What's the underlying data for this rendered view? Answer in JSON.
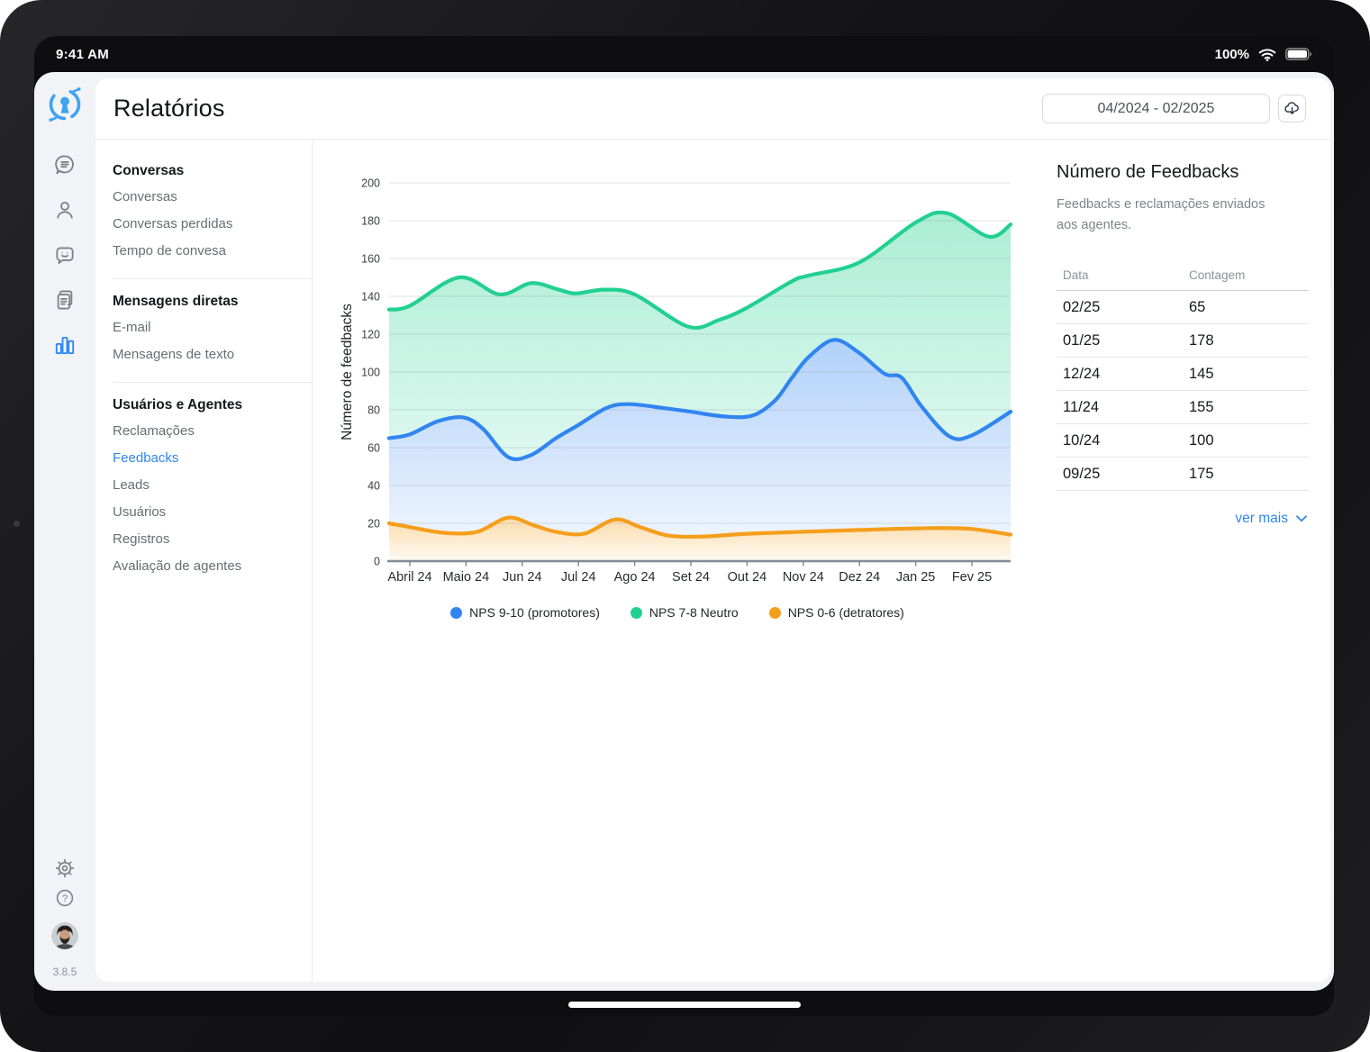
{
  "status_bar": {
    "time": "9:41 AM",
    "battery_percent": "100%"
  },
  "header": {
    "title": "Relatórios",
    "date_range": "04/2024 - 02/2025"
  },
  "colors": {
    "accent": "#2e86f0",
    "chart_blue": "#3185f0",
    "chart_green": "#22d092",
    "chart_orange": "#f59e1b"
  },
  "rail": {
    "icons": [
      "conversations",
      "contacts",
      "feedback",
      "documents",
      "reports"
    ],
    "active_icon": "reports",
    "bottom_icons": [
      "settings",
      "help"
    ],
    "version": "3.8.5"
  },
  "sidebar": {
    "sections": [
      {
        "header": "Conversas",
        "items": [
          {
            "label": "Conversas",
            "active": false
          },
          {
            "label": "Conversas perdidas",
            "active": false
          },
          {
            "label": "Tempo de convesa",
            "active": false
          }
        ]
      },
      {
        "header": "Mensagens diretas",
        "items": [
          {
            "label": "E-mail",
            "active": false
          },
          {
            "label": "Mensagens de texto",
            "active": false
          }
        ]
      },
      {
        "header": "Usuários e Agentes",
        "items": [
          {
            "label": "Reclamações",
            "active": false
          },
          {
            "label": "Feedbacks",
            "active": true
          },
          {
            "label": "Leads",
            "active": false
          },
          {
            "label": "Usuários",
            "active": false
          },
          {
            "label": "Registros",
            "active": false
          },
          {
            "label": "Avaliação de agentes",
            "active": false
          }
        ]
      }
    ]
  },
  "chart_data": {
    "type": "area",
    "title": "",
    "xlabel": "",
    "ylabel": "Número de feedbacks",
    "ylim": [
      0,
      200
    ],
    "ytick_step": 20,
    "grid": true,
    "legend_position": "bottom",
    "categories": [
      "Abril 24",
      "Maio 24",
      "Jun 24",
      "Jul 24",
      "Ago 24",
      "Set 24",
      "Out 24",
      "Nov 24",
      "Dez 24",
      "Jan 25",
      "Fev 25"
    ],
    "series": [
      {
        "name": "NPS 9-10 (promotores)",
        "color": "#3185f0",
        "values": [
          67,
          76,
          56,
          72,
          82,
          79,
          77,
          107,
          110,
          85,
          67
        ],
        "curve": [
          [
            -0.37,
            65
          ],
          [
            0,
            67
          ],
          [
            0.5,
            74
          ],
          [
            0.95,
            76
          ],
          [
            1.3,
            70
          ],
          [
            1.75,
            55
          ],
          [
            2.15,
            56
          ],
          [
            2.6,
            65
          ],
          [
            3,
            72
          ],
          [
            3.5,
            81
          ],
          [
            3.9,
            83
          ],
          [
            4.5,
            81
          ],
          [
            5,
            79
          ],
          [
            5.6,
            76.5
          ],
          [
            6.1,
            77
          ],
          [
            6.5,
            85
          ],
          [
            6.8,
            97
          ],
          [
            7.1,
            108
          ],
          [
            7.55,
            117
          ],
          [
            8,
            110
          ],
          [
            8.45,
            99
          ],
          [
            8.75,
            97
          ],
          [
            9.1,
            82
          ],
          [
            9.6,
            66
          ],
          [
            10,
            66.5
          ],
          [
            10.69,
            79
          ]
        ]
      },
      {
        "name": "NPS 7-8 Neutro",
        "color": "#22d092",
        "values": [
          135,
          149,
          146,
          142,
          141,
          124,
          134,
          150,
          158,
          180,
          174
        ],
        "curve": [
          [
            -0.37,
            133
          ],
          [
            0,
            135
          ],
          [
            0.88,
            150
          ],
          [
            1.6,
            141
          ],
          [
            2.16,
            147
          ],
          [
            2.65,
            143.5
          ],
          [
            2.95,
            141.5
          ],
          [
            3.45,
            143.5
          ],
          [
            4,
            141
          ],
          [
            4.95,
            124
          ],
          [
            5.5,
            127.5
          ],
          [
            6,
            134
          ],
          [
            6.8,
            148
          ],
          [
            7.1,
            151
          ],
          [
            8,
            158
          ],
          [
            9,
            179
          ],
          [
            9.55,
            184
          ],
          [
            10.3,
            171.5
          ],
          [
            10.69,
            178
          ]
        ]
      },
      {
        "name": "NPS 0-6 (detratores)",
        "color": "#f59e1b",
        "values": [
          18,
          15,
          21,
          15,
          19,
          13,
          15,
          16,
          17,
          18,
          17
        ],
        "curve": [
          [
            -0.37,
            20
          ],
          [
            0,
            18
          ],
          [
            0.6,
            15
          ],
          [
            1.2,
            15.5
          ],
          [
            1.75,
            23
          ],
          [
            2.2,
            19
          ],
          [
            2.6,
            15.5
          ],
          [
            3.1,
            14.5
          ],
          [
            3.65,
            22
          ],
          [
            4.1,
            18
          ],
          [
            4.6,
            13.5
          ],
          [
            5.2,
            13
          ],
          [
            6,
            14.5
          ],
          [
            7,
            15.5
          ],
          [
            8,
            16.5
          ],
          [
            9.3,
            17.5
          ],
          [
            10,
            17
          ],
          [
            10.69,
            14
          ]
        ]
      }
    ]
  },
  "panel": {
    "title": "Número de Feedbacks",
    "description": "Feedbacks e reclamações enviados aos agentes.",
    "table": {
      "columns": [
        "Data",
        "Contagem"
      ],
      "rows": [
        {
          "date": "02/25",
          "count": "65"
        },
        {
          "date": "01/25",
          "count": "178"
        },
        {
          "date": "12/24",
          "count": "145"
        },
        {
          "date": "11/24",
          "count": "155"
        },
        {
          "date": "10/24",
          "count": "100"
        },
        {
          "date": "09/25",
          "count": "175"
        }
      ]
    },
    "more_label": "ver mais"
  }
}
